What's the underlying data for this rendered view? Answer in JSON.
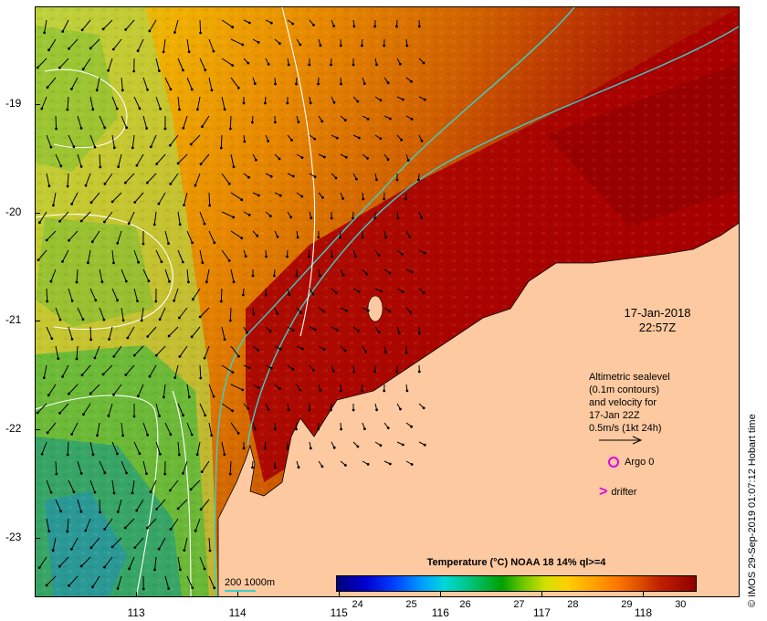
{
  "map": {
    "lat_ticks": [
      "-19",
      "-20",
      "-21",
      "-22",
      "-23"
    ],
    "lon_ticks": [
      "113",
      "114",
      "115",
      "116",
      "117",
      "118"
    ],
    "lat_values": [
      -19,
      -20,
      -21,
      -22,
      -23
    ],
    "lon_values": [
      113,
      114,
      115,
      116,
      117,
      118
    ],
    "lat_range": [
      -23.55,
      -18.1
    ],
    "lon_range": [
      112.0,
      118.95
    ]
  },
  "overlay": {
    "date": "17-Jan-2018",
    "time": "22:57Z"
  },
  "legend": {
    "line1": "Altimetric sealevel",
    "line2": "(0.1m contours)",
    "line3": "and velocity for",
    "line4": "17-Jan 22Z",
    "line5": "0.5m/s (1kt 24h)",
    "argo_label": "Argo 0",
    "drifter_label": "drifter"
  },
  "contour_legend": {
    "label": "200  1000m",
    "color": "#3ad1c8"
  },
  "colorbar": {
    "title": "Temperature (°C) NOAA 18 14% ql>=4",
    "ticks": [
      "24",
      "25",
      "26",
      "27",
      "28",
      "29",
      "30"
    ],
    "tick_values": [
      24,
      25,
      26,
      27,
      28,
      29,
      30
    ],
    "range": [
      23.6,
      30.3
    ]
  },
  "credit": "© IMOS 29-Sep-2019 01:07:12 Hobart time",
  "colors": {
    "land": "#fcc9a0",
    "hot_sst": "#a80000",
    "warm_sst": "#e88000",
    "mild_sst": "#f2b000",
    "cool_sst": "#8cc820",
    "cold_sst": "#20a060",
    "marker": "#e000e0"
  }
}
